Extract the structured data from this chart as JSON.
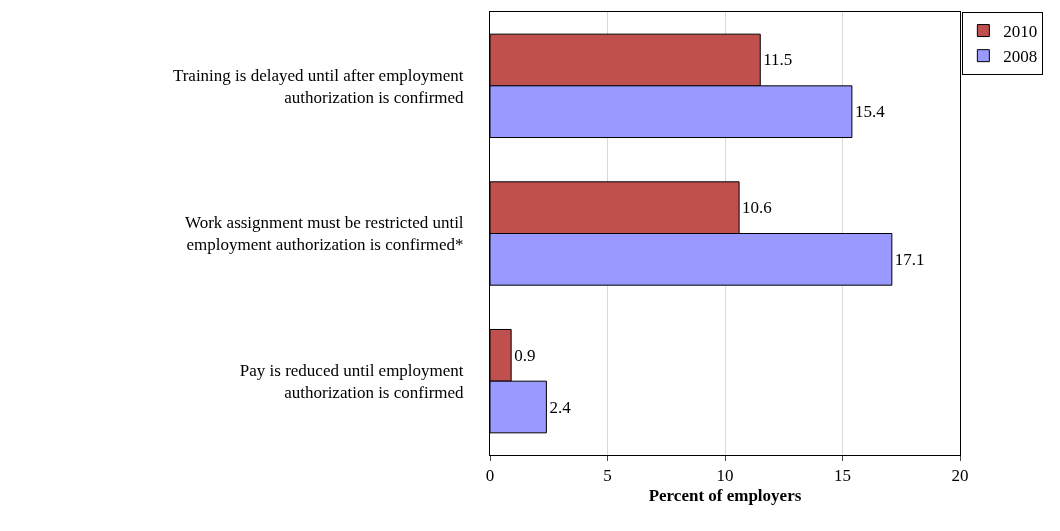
{
  "chart_data": {
    "type": "bar",
    "orientation": "horizontal",
    "xlabel": "Percent of employers",
    "categories": [
      "Training is delayed until after employment\nauthorization is confirmed",
      "Work assignment must be restricted until\nemployment authorization is confirmed*",
      "Pay is reduced until employment\nauthorization is confirmed"
    ],
    "series": [
      {
        "name": "2010",
        "color": "#c0504d",
        "values": [
          11.5,
          10.6,
          0.9
        ]
      },
      {
        "name": "2008",
        "color": "#9999ff",
        "values": [
          15.4,
          17.1,
          2.4
        ]
      }
    ],
    "xlim": [
      0,
      20
    ],
    "xticks": [
      0,
      5,
      10,
      15,
      20
    ],
    "grid": "x",
    "legend": "top right",
    "data_labels": true
  }
}
